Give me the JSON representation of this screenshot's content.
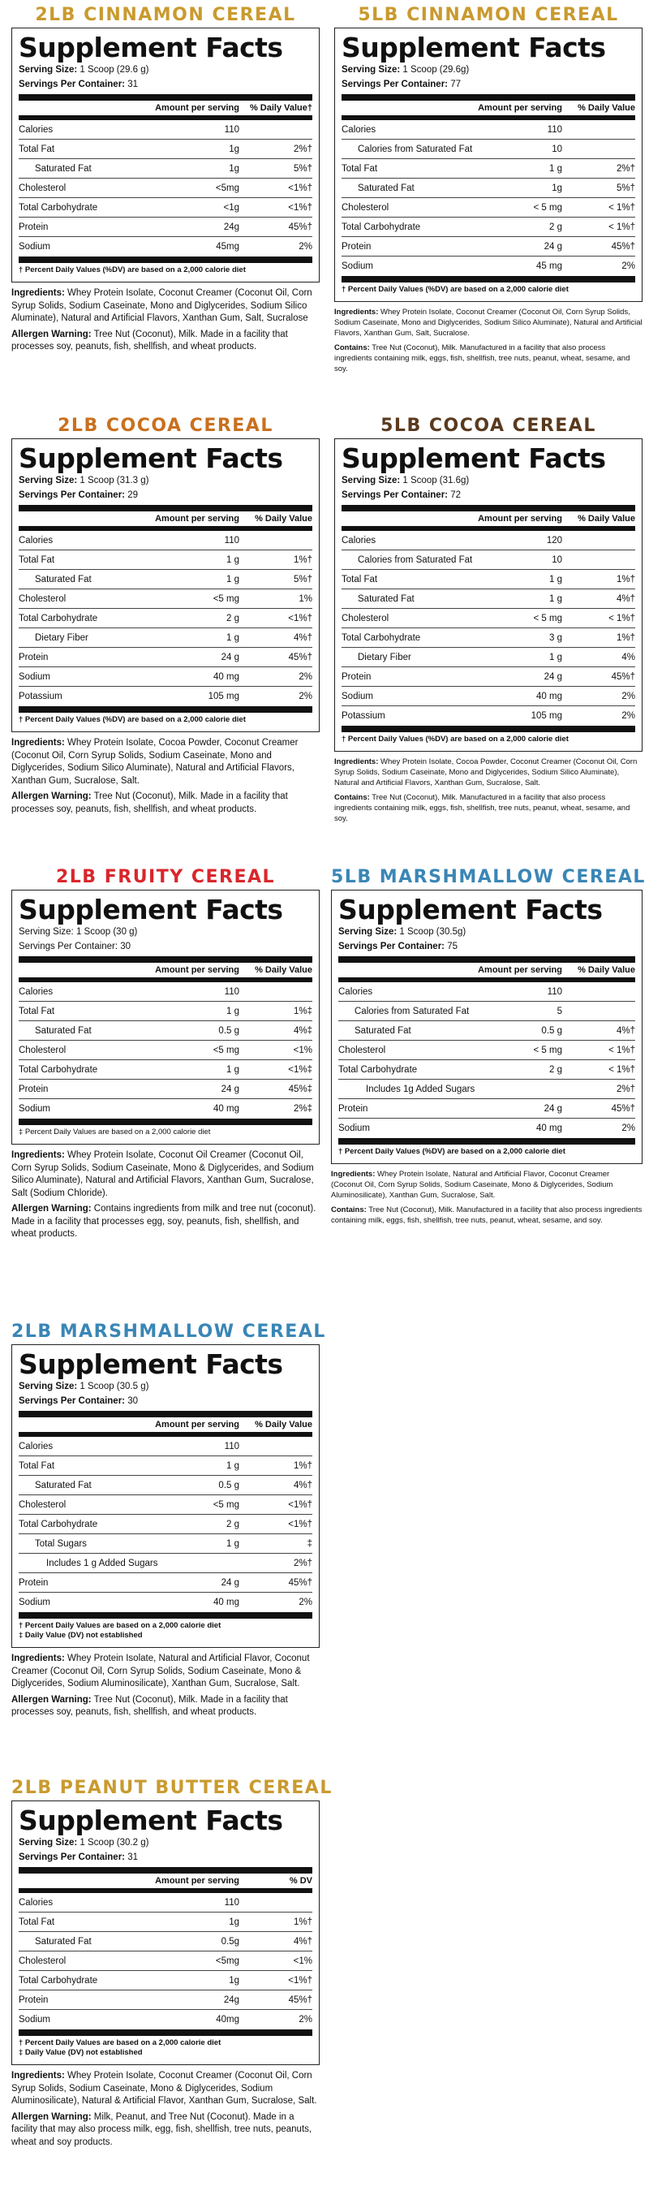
{
  "products": [
    {
      "title": "2LB CINNAMON CEREAL",
      "title_color": "#C99A2E",
      "heading": "Supplement Facts",
      "serving_size_label": "Serving Size:",
      "serving_size": " 1 Scoop (29.6 g)",
      "servings_label": "Servings Per Container:",
      "servings": " 31",
      "col_amount": "Amount per serving",
      "col_dv": "% Daily Value†",
      "rows": [
        {
          "name": "Calories",
          "amount": "110",
          "dv": ""
        },
        {
          "name": "Total Fat",
          "amount": "1g",
          "dv": "2%†"
        },
        {
          "name": "Saturated Fat",
          "amount": "1g",
          "dv": "5%†"
        },
        {
          "name": "Cholesterol",
          "amount": "<5mg",
          "dv": "<1%†"
        },
        {
          "name": "Total Carbohydrate",
          "amount": "<1g",
          "dv": "<1%†"
        },
        {
          "name": "Protein",
          "amount": "24g",
          "dv": "45%†"
        },
        {
          "name": "Sodium",
          "amount": "45mg",
          "dv": "2%"
        }
      ],
      "footnote": "† Percent Daily Values (%DV) are based on a 2,000 calorie diet",
      "ingredients_label": "Ingredients:",
      "ingredients": " Whey Protein Isolate, Coconut Creamer (Coconut Oil, Corn Syrup Solids, Sodium Caseinate, Mono and Diglycerides, Sodium Silico Aluminate), Natural and Artificial Flavors, Xanthan Gum, Salt, Sucralose",
      "allergen_label": "Allergen Warning:",
      "allergen": " Tree Nut (Coconut), Milk. Made in a facility that processes soy, peanuts, fish, shellfish, and wheat products."
    },
    {
      "title": "5LB CINNAMON CEREAL",
      "title_color": "#C99A2E",
      "heading": "Supplement Facts",
      "serving_size_label": "Serving Size:",
      "serving_size": " 1 Scoop (29.6g)",
      "servings_label": "Servings Per Container:",
      "servings": " 77",
      "col_amount": "Amount per serving",
      "col_dv": "% Daily Value",
      "rows": [
        {
          "name": "Calories",
          "amount": "110",
          "dv": ""
        },
        {
          "name": "Calories from Saturated Fat",
          "amount": "10",
          "dv": ""
        },
        {
          "name": "Total Fat",
          "amount": "1 g",
          "dv": "2%†"
        },
        {
          "name": "Saturated Fat",
          "amount": "1g",
          "dv": "5%†"
        },
        {
          "name": "Cholesterol",
          "amount": "< 5 mg",
          "dv": "< 1%†"
        },
        {
          "name": "Total Carbohydrate",
          "amount": "2 g",
          "dv": "< 1%†"
        },
        {
          "name": "Protein",
          "amount": "24 g",
          "dv": "45%†"
        },
        {
          "name": "Sodium",
          "amount": "45 mg",
          "dv": "2%"
        }
      ],
      "footnote": "† Percent Daily Values (%DV) are based on a 2,000 calorie diet",
      "ingredients_label": "Ingredients:",
      "ingredients": " Whey Protein Isolate, Coconut Creamer (Coconut Oil, Corn Syrup Solids, Sodium Caseinate, Mono and Diglycerides, Sodium Silico Aluminate), Natural and Artificial Flavors, Xanthan Gum, Salt, Sucralose.",
      "allergen_label": "Contains:",
      "allergen": " Tree Nut (Coconut), Milk. Manufactured in a facility that also process ingredients containing milk, eggs, fish, shellfish, tree nuts, peanut, wheat, sesame, and soy."
    },
    {
      "title": "2LB COCOA CEREAL",
      "title_color": "#C9701E",
      "heading": "Supplement Facts",
      "serving_size_label": "Serving Size:",
      "serving_size": " 1 Scoop (31.3 g)",
      "servings_label": "Servings Per Container:",
      "servings": " 29",
      "col_amount": "Amount per serving",
      "col_dv": "% Daily Value",
      "rows": [
        {
          "name": "Calories",
          "amount": "110",
          "dv": ""
        },
        {
          "name": "Total Fat",
          "amount": "1 g",
          "dv": "1%†"
        },
        {
          "name": "Saturated Fat",
          "amount": "1 g",
          "dv": "5%†"
        },
        {
          "name": "Cholesterol",
          "amount": "<5 mg",
          "dv": "1%"
        },
        {
          "name": "Total Carbohydrate",
          "amount": "2 g",
          "dv": "<1%†"
        },
        {
          "name": "Dietary Fiber",
          "amount": "1 g",
          "dv": "4%†"
        },
        {
          "name": "Protein",
          "amount": "24 g",
          "dv": "45%†"
        },
        {
          "name": "Sodium",
          "amount": "40 mg",
          "dv": "2%"
        },
        {
          "name": "Potassium",
          "amount": "105 mg",
          "dv": "2%"
        }
      ],
      "footnote": "† Percent Daily Values (%DV) are based on a 2,000 calorie diet",
      "ingredients_label": "Ingredients:",
      "ingredients": " Whey Protein Isolate, Cocoa Powder, Coconut Creamer (Coconut Oil, Corn Syrup Solids, Sodium Caseinate, Mono and Diglycerides, Sodium Silico Aluminate), Natural and Artificial Flavors, Xanthan Gum, Sucralose, Salt.",
      "allergen_label": "Allergen Warning:",
      "allergen": " Tree Nut (Coconut), Milk. Made in a facility that processes soy, peanuts, fish, shellfish, and wheat products."
    },
    {
      "title": "5LB COCOA CEREAL",
      "title_color": "#5A3A1E",
      "heading": "Supplement Facts",
      "serving_size_label": "Serving Size:",
      "serving_size": " 1 Scoop (31.6g)",
      "servings_label": "Servings Per Container:",
      "servings": " 72",
      "col_amount": "Amount per serving",
      "col_dv": "% Daily Value",
      "rows": [
        {
          "name": "Calories",
          "amount": "120",
          "dv": ""
        },
        {
          "name": "Calories from Saturated Fat",
          "amount": "10",
          "dv": ""
        },
        {
          "name": "Total Fat",
          "amount": "1 g",
          "dv": "1%†"
        },
        {
          "name": "Saturated Fat",
          "amount": "1 g",
          "dv": "4%†"
        },
        {
          "name": "Cholesterol",
          "amount": "< 5 mg",
          "dv": "< 1%†"
        },
        {
          "name": "Total Carbohydrate",
          "amount": "3 g",
          "dv": "1%†"
        },
        {
          "name": "Dietary Fiber",
          "amount": "1 g",
          "dv": "4%"
        },
        {
          "name": "Protein",
          "amount": "24 g",
          "dv": "45%†"
        },
        {
          "name": "Sodium",
          "amount": "40 mg",
          "dv": "2%"
        },
        {
          "name": "Potassium",
          "amount": "105 mg",
          "dv": "2%"
        }
      ],
      "footnote": "† Percent Daily Values (%DV) are based on a 2,000 calorie diet",
      "ingredients_label": "Ingredients:",
      "ingredients": " Whey Protein Isolate, Cocoa Powder, Coconut Creamer (Coconut Oil, Corn Syrup Solids, Sodium Caseinate, Mono and Diglycerides, Sodium Silico Aluminate), Natural and Artificial Flavors, Xanthan Gum, Sucralose, Salt.",
      "allergen_label": "Contains:",
      "allergen": " Tree Nut (Coconut), Milk. Manufactured in a facility that also process ingredients containing milk, eggs, fish, shellfish, tree nuts, peanut, wheat, sesame, and soy."
    },
    {
      "title": "2LB FRUITY CEREAL",
      "title_color": "#D9262C",
      "heading": "Supplement Facts",
      "serving_size_label": "",
      "serving_size": "Serving Size: 1 Scoop (30 g)",
      "servings_label": "",
      "servings": "Servings Per Container: 30",
      "col_amount": "Amount per serving",
      "col_dv": "% Daily Value",
      "rows": [
        {
          "name": "Calories",
          "amount": "110",
          "dv": ""
        },
        {
          "name": "Total Fat",
          "amount": "1 g",
          "dv": "1%‡"
        },
        {
          "name": "Saturated Fat",
          "amount": "0.5 g",
          "dv": "4%‡"
        },
        {
          "name": "Cholesterol",
          "amount": "<5 mg",
          "dv": "<1%"
        },
        {
          "name": "Total Carbohydrate",
          "amount": "1 g",
          "dv": "<1%‡"
        },
        {
          "name": "Protein",
          "amount": "24 g",
          "dv": "45%‡"
        },
        {
          "name": "Sodium",
          "amount": "40 mg",
          "dv": "2%‡"
        }
      ],
      "footnote": "‡ Percent Daily Values are based on a 2,000 calorie diet",
      "ingredients_label": "Ingredients:",
      "ingredients": " Whey Protein Isolate, Coconut Oil Creamer (Coconut Oil, Corn Syrup Solids, Sodium Caseinate, Mono & Diglycerides, and Sodium Silico Aluminate), Natural and Artificial Flavors, Xanthan Gum, Sucralose, Salt (Sodium Chloride).",
      "allergen_label": "Allergen Warning:",
      "allergen": " Contains ingredients from milk and tree nut (coconut). Made in a facility that processes egg, soy, peanuts, fish, shellfish, and wheat products."
    },
    {
      "title": "5LB MARSHMALLOW CEREAL",
      "title_color": "#3A86B6",
      "heading": "Supplement Facts",
      "serving_size_label": "Serving Size:",
      "serving_size": " 1 Scoop (30.5g)",
      "servings_label": "Servings Per Container:",
      "servings": " 75",
      "col_amount": "Amount per serving",
      "col_dv": "% Daily Value",
      "rows": [
        {
          "name": "Calories",
          "amount": "110",
          "dv": ""
        },
        {
          "name": "Calories from Saturated Fat",
          "amount": "5",
          "dv": ""
        },
        {
          "name": "Saturated Fat",
          "amount": "0.5 g",
          "dv": "4%†"
        },
        {
          "name": "Cholesterol",
          "amount": "< 5 mg",
          "dv": "< 1%†"
        },
        {
          "name": "Total Carbohydrate",
          "amount": "2 g",
          "dv": "< 1%†"
        },
        {
          "name": "Includes 1g Added Sugars",
          "amount": "",
          "dv": "2%†"
        },
        {
          "name": "Protein",
          "amount": "24 g",
          "dv": "45%†"
        },
        {
          "name": "Sodium",
          "amount": "40 mg",
          "dv": "2%"
        }
      ],
      "footnote": "† Percent Daily Values (%DV) are based on a 2,000 calorie diet",
      "ingredients_label": "Ingredients:",
      "ingredients": " Whey Protein Isolate, Natural and Artificial Flavor, Coconut Creamer (Coconut Oil, Corn Syrup Solids, Sodium Caseinate, Mono & Diglycerides, Sodium Aluminosilicate), Xanthan Gum, Sucralose, Salt.",
      "allergen_label": "Contains:",
      "allergen": " Tree Nut (Coconut), Milk. Manufactured in a facility that also process ingredients containing milk, eggs, fish, shellfish, tree nuts, peanut, wheat, sesame, and soy."
    },
    {
      "title": "2LB MARSHMALLOW CEREAL",
      "title_color": "#3A86B6",
      "heading": "Supplement Facts",
      "serving_size_label": "Serving Size:",
      "serving_size": " 1 Scoop (30.5 g)",
      "servings_label": "Servings Per Container:",
      "servings": " 30",
      "col_amount": "Amount per serving",
      "col_dv": "% Daily Value",
      "rows": [
        {
          "name": "Calories",
          "amount": "110",
          "dv": ""
        },
        {
          "name": "Total Fat",
          "amount": "1 g",
          "dv": "1%†"
        },
        {
          "name": "Saturated Fat",
          "amount": "0.5 g",
          "dv": "4%†"
        },
        {
          "name": "Cholesterol",
          "amount": "<5 mg",
          "dv": "<1%†"
        },
        {
          "name": "Total Carbohydrate",
          "amount": "2 g",
          "dv": "<1%†"
        },
        {
          "name": "Total Sugars",
          "amount": "1 g",
          "dv": "‡"
        },
        {
          "name": "Includes 1 g Added Sugars",
          "amount": "",
          "dv": "2%†"
        },
        {
          "name": "Protein",
          "amount": "24 g",
          "dv": "45%†"
        },
        {
          "name": "Sodium",
          "amount": "40 mg",
          "dv": "2%"
        }
      ],
      "footnote": "† Percent Daily Values are based on a 2,000 calorie diet",
      "footnote2": "‡ Daily Value (DV) not established",
      "ingredients_label": "Ingredients:",
      "ingredients": " Whey Protein Isolate, Natural and Artificial Flavor, Coconut Creamer (Coconut Oil, Corn Syrup Solids, Sodium Caseinate, Mono & Diglycerides, Sodium Aluminosilicate), Xanthan Gum, Sucralose, Salt.",
      "allergen_label": "Allergen Warning:",
      "allergen": " Tree Nut (Coconut), Milk. Made in a facility that processes soy, peanuts, fish, shellfish, and wheat products."
    },
    {
      "title": "2LB PEANUT BUTTER CEREAL",
      "title_color": "#C99A2E",
      "heading": "Supplement Facts",
      "serving_size_label": "Serving Size:",
      "serving_size": " 1 Scoop (30.2 g)",
      "servings_label": "Servings Per Container:",
      "servings": " 31",
      "col_amount": "Amount per serving",
      "col_dv": "% DV",
      "rows": [
        {
          "name": "Calories",
          "amount": "110",
          "dv": ""
        },
        {
          "name": "Total Fat",
          "amount": "1g",
          "dv": "1%†"
        },
        {
          "name": "Saturated Fat",
          "amount": "0.5g",
          "dv": "4%†"
        },
        {
          "name": "Cholesterol",
          "amount": "<5mg",
          "dv": "<1%"
        },
        {
          "name": "Total Carbohydrate",
          "amount": "1g",
          "dv": "<1%†"
        },
        {
          "name": "Protein",
          "amount": "24g",
          "dv": "45%†"
        },
        {
          "name": "Sodium",
          "amount": "40mg",
          "dv": "2%"
        }
      ],
      "footnote": "† Percent Daily Values are based on a 2,000 calorie diet",
      "footnote2": "‡ Daily Value (DV) not established",
      "ingredients_label": "Ingredients:",
      "ingredients": " Whey Protein Isolate, Coconut Creamer (Coconut Oil, Corn Syrup Solids, Sodium Caseinate, Mono & Diglycerides, Sodium Aluminosilicate), Natural & Artificial Flavor, Xanthan Gum, Sucralose, Salt.",
      "allergen_label": "Allergen Warning:",
      "allergen": " Milk, Peanut, and Tree Nut (Coconut). Made in a facility that may also process milk, egg, fish, shellfish, tree nuts, peanuts, wheat and soy products."
    }
  ]
}
